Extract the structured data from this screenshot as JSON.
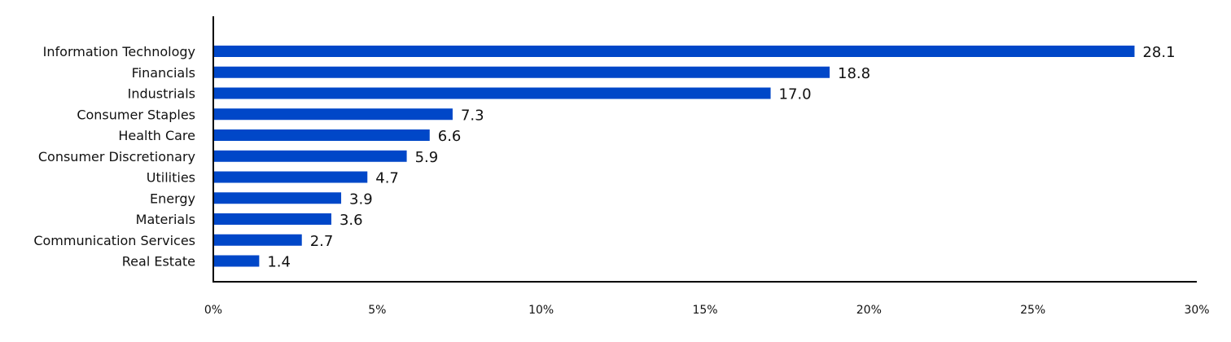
{
  "chart_data": {
    "type": "bar",
    "orientation": "horizontal",
    "title": "",
    "xlabel": "",
    "ylabel": "",
    "categories": [
      "Information Technology",
      "Financials",
      "Industrials",
      "Consumer Staples",
      "Health Care",
      "Consumer Discretionary",
      "Utilities",
      "Energy",
      "Materials",
      "Communication Services",
      "Real Estate"
    ],
    "values": [
      28.1,
      18.8,
      17.0,
      7.3,
      6.6,
      5.9,
      4.7,
      3.9,
      3.6,
      2.7,
      1.4
    ],
    "value_labels": [
      "28.1",
      "18.8",
      "17.0",
      "7.3",
      "6.6",
      "5.9",
      "4.7",
      "3.9",
      "3.6",
      "2.7",
      "1.4"
    ],
    "xlim": [
      0,
      30
    ],
    "xticks": [
      0,
      5,
      10,
      15,
      20,
      25,
      30
    ],
    "xtick_labels": [
      "0%",
      "5%",
      "10%",
      "15%",
      "20%",
      "25%",
      "30%"
    ],
    "bar_color": "#0047c8",
    "grid": false,
    "legend": "none"
  }
}
